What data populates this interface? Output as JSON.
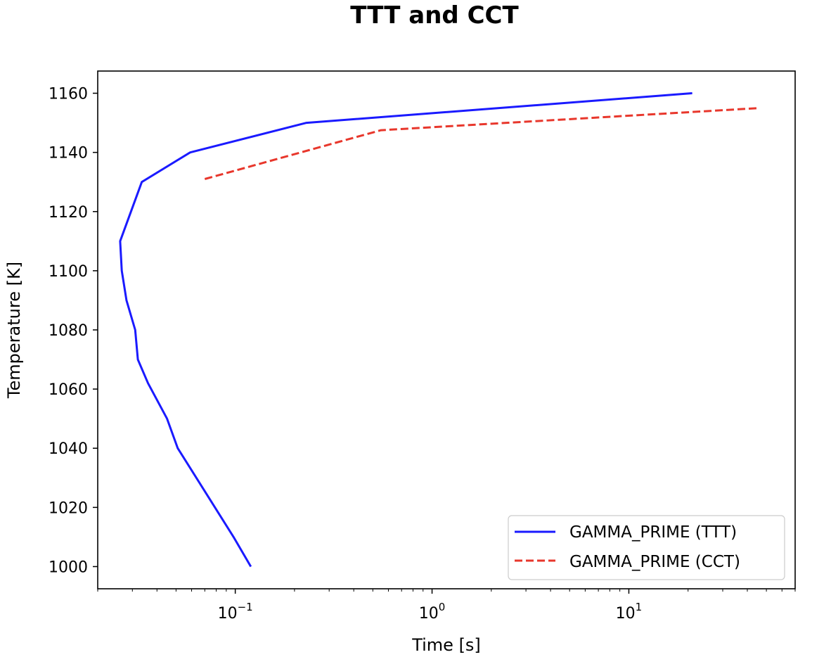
{
  "chart_data": {
    "type": "line",
    "title": "TTT and CCT",
    "xlabel": "Time [s]",
    "ylabel": "Temperature [K]",
    "xscale": "log",
    "xlim": [
      0.02,
      70
    ],
    "ylim": [
      992.5,
      1167.5
    ],
    "x_ticks": [
      {
        "value": 0.1,
        "base": "10",
        "exp": "−1"
      },
      {
        "value": 1,
        "base": "10",
        "exp": "0"
      },
      {
        "value": 10,
        "base": "10",
        "exp": "1"
      }
    ],
    "y_ticks": [
      1000,
      1020,
      1040,
      1060,
      1080,
      1100,
      1120,
      1140,
      1160
    ],
    "grid": false,
    "legend": {
      "position": "lower-right"
    },
    "series": [
      {
        "name": "GAMMA_PRIME (TTT)",
        "color": "#1a1aff",
        "style": "solid",
        "points": [
          [
            0.12,
            1000
          ],
          [
            0.098,
            1010
          ],
          [
            0.051,
            1040
          ],
          [
            0.045,
            1050
          ],
          [
            0.036,
            1062
          ],
          [
            0.032,
            1070
          ],
          [
            0.031,
            1080
          ],
          [
            0.028,
            1090
          ],
          [
            0.0265,
            1100
          ],
          [
            0.026,
            1110
          ],
          [
            0.0335,
            1130
          ],
          [
            0.059,
            1140
          ],
          [
            0.23,
            1150
          ],
          [
            21,
            1160
          ]
        ]
      },
      {
        "name": "GAMMA_PRIME (CCT)",
        "color": "#e8372c",
        "style": "dashed",
        "points": [
          [
            0.07,
            1131
          ],
          [
            0.55,
            1147.5
          ],
          [
            46,
            1155
          ]
        ]
      }
    ]
  }
}
